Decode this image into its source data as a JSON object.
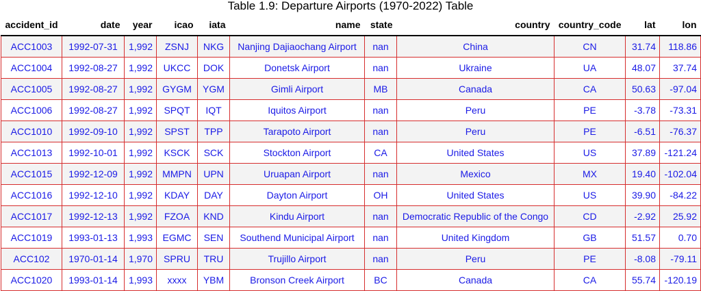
{
  "title": "Table 1.9: Departure Airports (1970-2022) Table",
  "columns": [
    "accident_id",
    "date",
    "year",
    "icao",
    "iata",
    "name",
    "state",
    "country",
    "country_code",
    "lat",
    "lon"
  ],
  "rows": [
    [
      "ACC1003",
      "1992-07-31",
      "1,992",
      "ZSNJ",
      "NKG",
      "Nanjing Dajiaochang Airport",
      "nan",
      "China",
      "CN",
      "31.74",
      "118.86"
    ],
    [
      "ACC1004",
      "1992-08-27",
      "1,992",
      "UKCC",
      "DOK",
      "Donetsk Airport",
      "nan",
      "Ukraine",
      "UA",
      "48.07",
      "37.74"
    ],
    [
      "ACC1005",
      "1992-08-27",
      "1,992",
      "GYGM",
      "YGM",
      "Gimli Airport",
      "MB",
      "Canada",
      "CA",
      "50.63",
      "-97.04"
    ],
    [
      "ACC1006",
      "1992-08-27",
      "1,992",
      "SPQT",
      "IQT",
      "Iquitos Airport",
      "nan",
      "Peru",
      "PE",
      "-3.78",
      "-73.31"
    ],
    [
      "ACC1010",
      "1992-09-10",
      "1,992",
      "SPST",
      "TPP",
      "Tarapoto Airport",
      "nan",
      "Peru",
      "PE",
      "-6.51",
      "-76.37"
    ],
    [
      "ACC1013",
      "1992-10-01",
      "1,992",
      "KSCK",
      "SCK",
      "Stockton Airport",
      "CA",
      "United States",
      "US",
      "37.89",
      "-121.24"
    ],
    [
      "ACC1015",
      "1992-12-09",
      "1,992",
      "MMPN",
      "UPN",
      "Uruapan Airport",
      "nan",
      "Mexico",
      "MX",
      "19.40",
      "-102.04"
    ],
    [
      "ACC1016",
      "1992-12-10",
      "1,992",
      "KDAY",
      "DAY",
      "Dayton Airport",
      "OH",
      "United States",
      "US",
      "39.90",
      "-84.22"
    ],
    [
      "ACC1017",
      "1992-12-13",
      "1,992",
      "FZOA",
      "KND",
      "Kindu Airport",
      "nan",
      "Democratic Republic of the Congo",
      "CD",
      "-2.92",
      "25.92"
    ],
    [
      "ACC1019",
      "1993-01-13",
      "1,993",
      "EGMC",
      "SEN",
      "Southend Municipal Airport",
      "nan",
      "United Kingdom",
      "GB",
      "51.57",
      "0.70"
    ],
    [
      "ACC102",
      "1970-01-14",
      "1,970",
      "SPRU",
      "TRU",
      "Trujillo Airport",
      "nan",
      "Peru",
      "PE",
      "-8.08",
      "-79.11"
    ],
    [
      "ACC1020",
      "1993-01-14",
      "1,993",
      "xxxx",
      "YBM",
      "Bronson Creek Airport",
      "BC",
      "Canada",
      "CA",
      "55.74",
      "-120.19"
    ]
  ]
}
